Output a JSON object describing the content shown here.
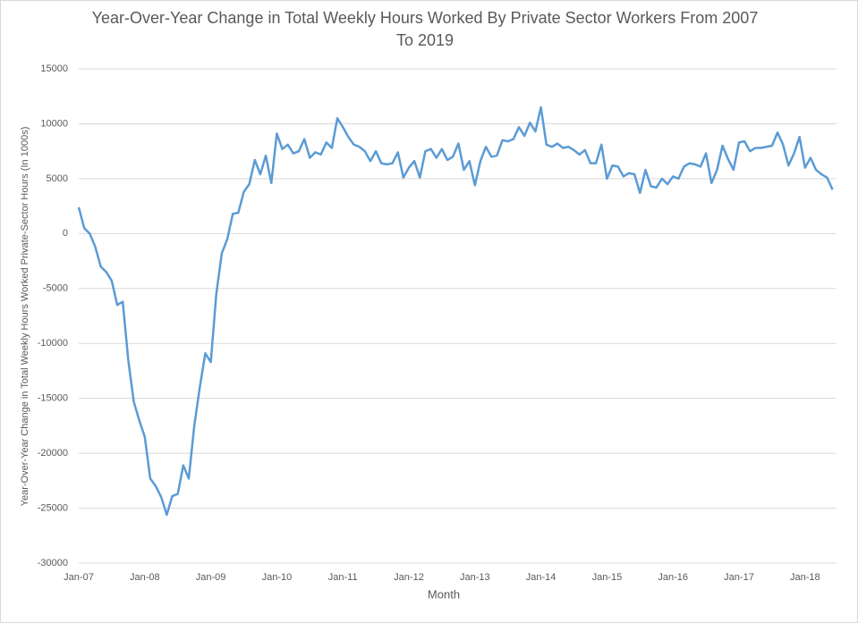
{
  "chart_data": {
    "type": "line",
    "title": "Year-Over-Year Change in Total Weekly Hours Worked By Private Sector Workers From 2007 To 2019",
    "x_label": "Month",
    "y_label": "Year-Over-Year Change in Total Weekly Hours Worked Private-Sector Hours (In 1000s)",
    "categories": [
      "Jan-07",
      null,
      null,
      null,
      null,
      null,
      null,
      null,
      null,
      null,
      null,
      null,
      "Jan-08",
      null,
      null,
      null,
      null,
      null,
      null,
      null,
      null,
      null,
      null,
      null,
      "Jan-09",
      null,
      null,
      null,
      null,
      null,
      null,
      null,
      null,
      null,
      null,
      null,
      "Jan-10",
      null,
      null,
      null,
      null,
      null,
      null,
      null,
      null,
      null,
      null,
      null,
      "Jan-11",
      null,
      null,
      null,
      null,
      null,
      null,
      null,
      null,
      null,
      null,
      null,
      "Jan-12",
      null,
      null,
      null,
      null,
      null,
      null,
      null,
      null,
      null,
      null,
      null,
      "Jan-13",
      null,
      null,
      null,
      null,
      null,
      null,
      null,
      null,
      null,
      null,
      null,
      "Jan-14",
      null,
      null,
      null,
      null,
      null,
      null,
      null,
      null,
      null,
      null,
      null,
      "Jan-15",
      null,
      null,
      null,
      null,
      null,
      null,
      null,
      null,
      null,
      null,
      null,
      "Jan-16",
      null,
      null,
      null,
      null,
      null,
      null,
      null,
      null,
      null,
      null,
      null,
      "Jan-17",
      null,
      null,
      null,
      null,
      null,
      null,
      null,
      null,
      null,
      null,
      null,
      "Jan-18",
      null,
      null,
      null,
      null,
      null
    ],
    "values": [
      2400,
      500,
      0,
      -1200,
      -3000,
      -3500,
      -4300,
      -6500,
      -6200,
      -11500,
      -15300,
      -17000,
      -18500,
      -22300,
      -23000,
      -24000,
      -25600,
      -23900,
      -23700,
      -21100,
      -22300,
      -17500,
      -14000,
      -10900,
      -11700,
      -5500,
      -1800,
      -500,
      1800,
      1900,
      3800,
      4500,
      6700,
      5400,
      7100,
      4600,
      9100,
      7700,
      8100,
      7300,
      7500,
      8600,
      6900,
      7400,
      7200,
      8300,
      7800,
      10500,
      9700,
      8800,
      8100,
      7900,
      7500,
      6600,
      7500,
      6400,
      6300,
      6400,
      7400,
      5100,
      6000,
      6600,
      5100,
      7500,
      7700,
      6900,
      7700,
      6700,
      7000,
      8200,
      5800,
      6600,
      4400,
      6600,
      7900,
      7000,
      7100,
      8500,
      8400,
      8600,
      9700,
      8900,
      10100,
      9300,
      11500,
      8100,
      7900,
      8200,
      7800,
      7900,
      7600,
      7200,
      7600,
      6400,
      6400,
      8100,
      5000,
      6200,
      6100,
      5200,
      5500,
      5400,
      3700,
      5800,
      4300,
      4200,
      5000,
      4500,
      5200,
      5000,
      6100,
      6400,
      6300,
      6100,
      7300,
      4600,
      5800,
      8000,
      6800,
      5800,
      8300,
      8400,
      7500,
      7800,
      7800,
      7900,
      8000,
      9200,
      8100,
      6200,
      7300,
      8800,
      6000,
      6900,
      5800,
      5400,
      5100,
      4000
    ],
    "color": "#5b9bd5",
    "ylim": [
      -30000,
      15000
    ],
    "yticks": [
      -30000,
      -25000,
      -20000,
      -15000,
      -10000,
      -5000,
      0,
      5000,
      10000,
      15000
    ],
    "grid": true
  }
}
